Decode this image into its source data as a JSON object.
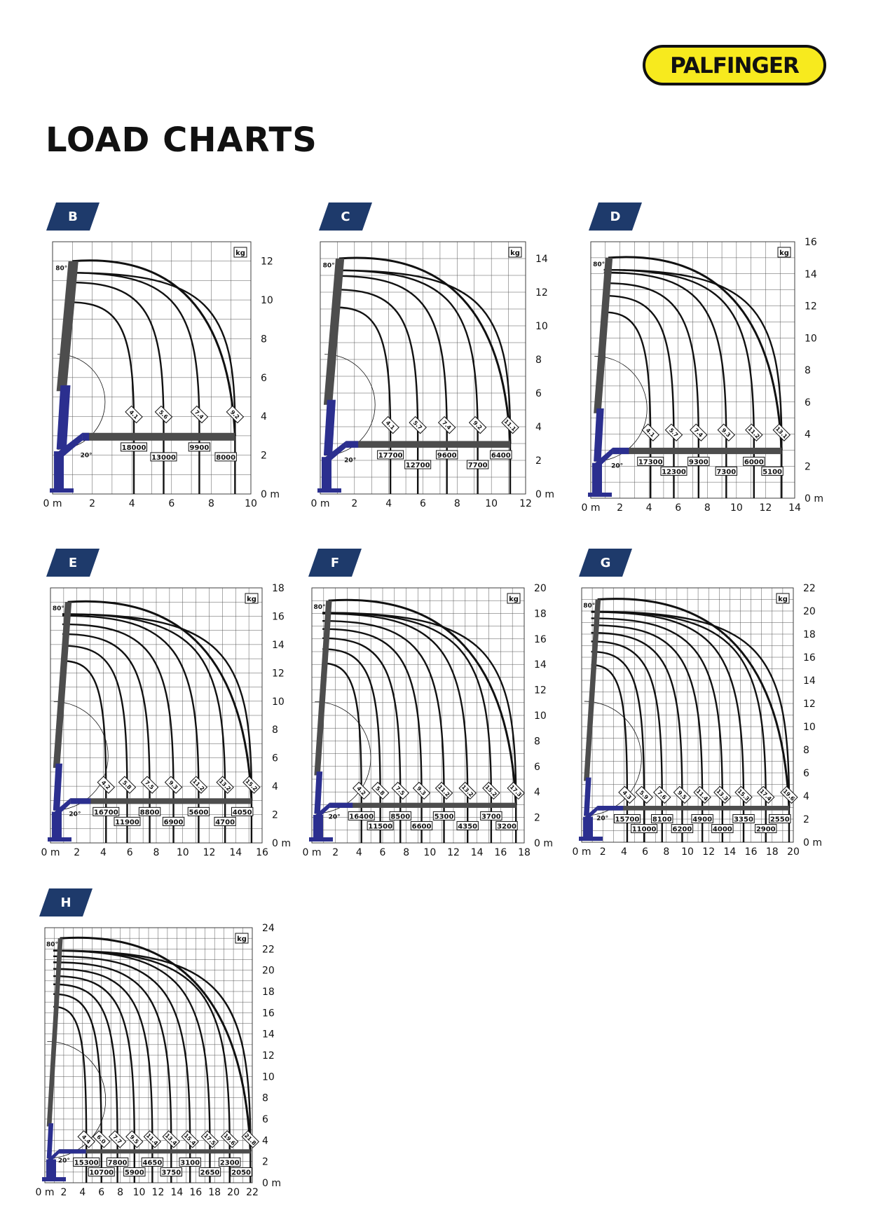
{
  "brand": {
    "name": "PALFINGER",
    "colors": {
      "logo_fill": "#f7ea1e",
      "logo_outline": "#111111",
      "tag": "#1e3a6b",
      "crane_blue": "#2b2f8f",
      "boom_grey": "#4d4d4d"
    }
  },
  "page": {
    "title": "LOAD CHARTS"
  },
  "common": {
    "unit": "kg",
    "angle_top": "80°",
    "angle_low": "20°",
    "x_suffix": "m",
    "y_suffix": "m"
  },
  "chart_data": [
    {
      "id": "B",
      "type": "line",
      "title": "B",
      "xlim": [
        0,
        10
      ],
      "ylim": [
        0,
        13
      ],
      "x_ticks": [
        0,
        2,
        4,
        6,
        8,
        10
      ],
      "y_ticks": [
        0,
        2,
        4,
        6,
        8,
        10,
        12
      ],
      "outreach_labels": [
        "4.1",
        "5.6",
        "7.4",
        "9.2"
      ],
      "outreach_m": [
        4.1,
        5.6,
        7.4,
        9.2
      ],
      "loads_kg": [
        "18000",
        "13000",
        "9900",
        "8000"
      ],
      "max_height_m": 12
    },
    {
      "id": "C",
      "type": "line",
      "title": "C",
      "xlim": [
        0,
        12
      ],
      "ylim": [
        0,
        15
      ],
      "x_ticks": [
        0,
        2,
        4,
        6,
        8,
        10,
        12
      ],
      "y_ticks": [
        0,
        2,
        4,
        6,
        8,
        10,
        12,
        14
      ],
      "outreach_labels": [
        "4.1",
        "5.7",
        "7.4",
        "9.2",
        "11.1"
      ],
      "outreach_m": [
        4.1,
        5.7,
        7.4,
        9.2,
        11.1
      ],
      "loads_kg": [
        "17700",
        "12700",
        "9600",
        "7700",
        "6400"
      ],
      "max_height_m": 14
    },
    {
      "id": "D",
      "type": "line",
      "title": "D",
      "xlim": [
        0,
        14
      ],
      "ylim": [
        0,
        16
      ],
      "x_ticks": [
        0,
        2,
        4,
        6,
        8,
        10,
        12,
        14
      ],
      "y_ticks": [
        0,
        2,
        4,
        6,
        8,
        10,
        12,
        14,
        16
      ],
      "outreach_labels": [
        "4.1",
        "5.7",
        "7.4",
        "9.3",
        "11.2",
        "13.1"
      ],
      "outreach_m": [
        4.1,
        5.7,
        7.4,
        9.3,
        11.2,
        13.1
      ],
      "loads_kg": [
        "17300",
        "12300",
        "9300",
        "7300",
        "6000",
        "5100"
      ],
      "max_height_m": 15
    },
    {
      "id": "E",
      "type": "line",
      "title": "E",
      "xlim": [
        0,
        16
      ],
      "ylim": [
        0,
        18
      ],
      "x_ticks": [
        0,
        2,
        4,
        6,
        8,
        10,
        12,
        14,
        16
      ],
      "y_ticks": [
        0,
        2,
        4,
        6,
        8,
        10,
        12,
        14,
        16,
        18
      ],
      "outreach_labels": [
        "4.2",
        "5.8",
        "7.5",
        "9.3",
        "11.2",
        "13.2",
        "15.2"
      ],
      "outreach_m": [
        4.2,
        5.8,
        7.5,
        9.3,
        11.2,
        13.2,
        15.2
      ],
      "loads_kg": [
        "16700",
        "11900",
        "8800",
        "6900",
        "5600",
        "4700",
        "4050"
      ],
      "max_height_m": 17
    },
    {
      "id": "F",
      "type": "line",
      "title": "F",
      "xlim": [
        0,
        18
      ],
      "ylim": [
        0,
        20
      ],
      "x_ticks": [
        0,
        2,
        4,
        6,
        8,
        10,
        12,
        14,
        16,
        18
      ],
      "y_ticks": [
        0,
        2,
        4,
        6,
        8,
        10,
        12,
        14,
        16,
        18,
        20
      ],
      "outreach_labels": [
        "4.2",
        "5.8",
        "7.5",
        "9.3",
        "11.2",
        "13.2",
        "15.2",
        "17.3"
      ],
      "outreach_m": [
        4.2,
        5.8,
        7.5,
        9.3,
        11.2,
        13.2,
        15.2,
        17.3
      ],
      "loads_kg": [
        "16400",
        "11500",
        "8500",
        "6600",
        "5300",
        "4350",
        "3700",
        "3200"
      ],
      "max_height_m": 19
    },
    {
      "id": "G",
      "type": "line",
      "title": "G",
      "xlim": [
        0,
        20
      ],
      "ylim": [
        0,
        22
      ],
      "x_ticks": [
        0,
        2,
        4,
        6,
        8,
        10,
        12,
        14,
        16,
        18,
        20
      ],
      "y_ticks": [
        0,
        2,
        4,
        6,
        8,
        10,
        12,
        14,
        16,
        18,
        20,
        22
      ],
      "outreach_labels": [
        "4.3",
        "5.9",
        "7.6",
        "9.5",
        "11.4",
        "13.3",
        "15.3",
        "17.4",
        "19.6"
      ],
      "outreach_m": [
        4.3,
        5.9,
        7.6,
        9.5,
        11.4,
        13.3,
        15.3,
        17.4,
        19.6
      ],
      "loads_kg": [
        "15700",
        "11000",
        "8100",
        "6200",
        "4900",
        "4000",
        "3350",
        "2900",
        "2550"
      ],
      "max_height_m": 21
    },
    {
      "id": "H",
      "type": "line",
      "title": "H",
      "xlim": [
        0,
        22
      ],
      "ylim": [
        0,
        24
      ],
      "x_ticks": [
        0,
        2,
        4,
        6,
        8,
        10,
        12,
        14,
        16,
        18,
        20,
        22
      ],
      "y_ticks": [
        0,
        2,
        4,
        6,
        8,
        10,
        12,
        14,
        16,
        18,
        20,
        22,
        24
      ],
      "outreach_labels": [
        "4.4",
        "6.0",
        "7.7",
        "9.5",
        "11.4",
        "13.4",
        "15.4",
        "17.5",
        "19.6",
        "21.8"
      ],
      "outreach_m": [
        4.4,
        6.0,
        7.7,
        9.5,
        11.4,
        13.4,
        15.4,
        17.5,
        19.6,
        21.8
      ],
      "loads_kg": [
        "15300",
        "10700",
        "7800",
        "5900",
        "4650",
        "3750",
        "3100",
        "2650",
        "2300",
        "2050"
      ],
      "max_height_m": 23
    }
  ]
}
